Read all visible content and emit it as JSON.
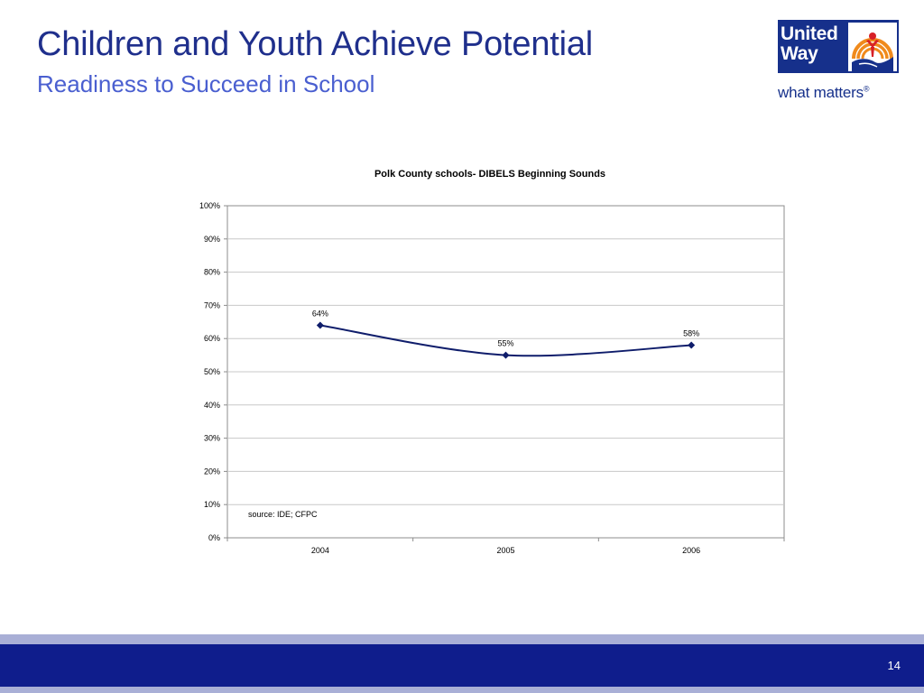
{
  "slide": {
    "title": "Children and Youth Achieve Potential",
    "subtitle": "Readiness to Succeed in School",
    "page_number": "14"
  },
  "logo": {
    "word_line1": "United",
    "word_line2": "Way",
    "tagline": "what matters",
    "tagline_mark": "®",
    "colors": {
      "brand_blue": "#16308b",
      "orange": "#f08a1c",
      "red": "#d72027"
    }
  },
  "chart_data": {
    "type": "line",
    "title": "Polk County schools- DIBELS Beginning Sounds",
    "categories": [
      "2004",
      "2005",
      "2006"
    ],
    "series": [
      {
        "values": [
          0.64,
          0.55,
          0.58
        ],
        "data_labels": [
          "64%",
          "55%",
          "58%"
        ]
      }
    ],
    "ylim": [
      0,
      1
    ],
    "yticks": [
      "0%",
      "10%",
      "20%",
      "30%",
      "40%",
      "50%",
      "60%",
      "70%",
      "80%",
      "90%",
      "100%"
    ],
    "grid": true,
    "smooth": true,
    "marker": "diamond",
    "line_color": "#0f1d6b",
    "annotation": "source: IDE; CFPC"
  }
}
